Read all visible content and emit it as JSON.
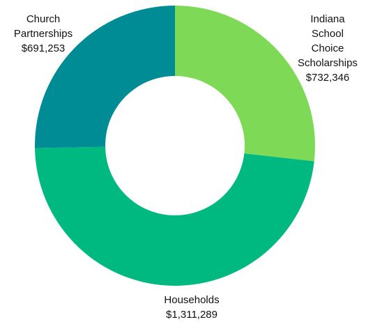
{
  "chart_data": {
    "type": "donut",
    "categories": [
      "Indiana School\nChoice Scholarships",
      "Households",
      "Church\nPartnerships"
    ],
    "values": [
      732346,
      1311289,
      691253
    ],
    "value_labels": [
      "$732,346",
      "$1,311,289",
      "$691,253"
    ],
    "colors": [
      "#7ed957",
      "#00b980",
      "#008c95"
    ]
  }
}
